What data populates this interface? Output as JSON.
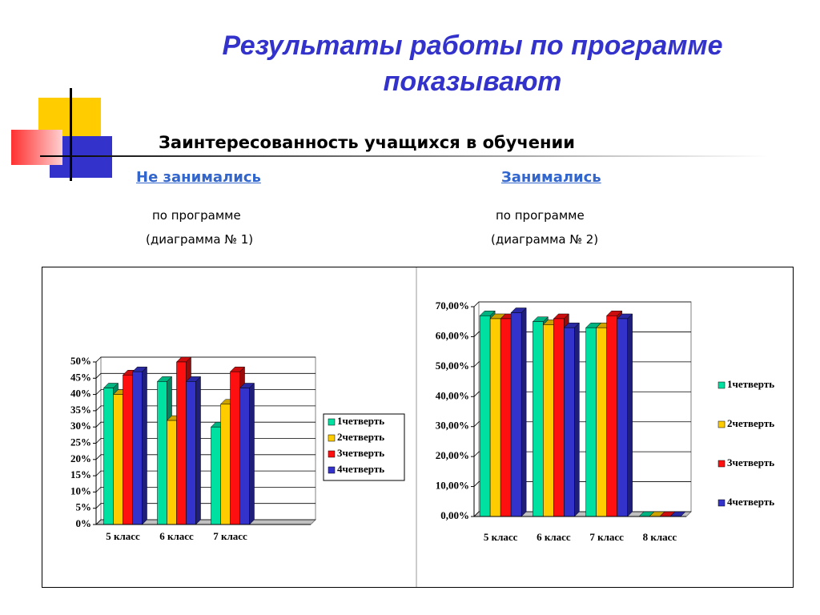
{
  "header": {
    "title_lines": [
      "Результаты работы по программе",
      "показывают"
    ],
    "subtitle": "Заинтересованность учащихся в обучении"
  },
  "columns": [
    {
      "heading": "Не  занимались",
      "line1": "по программе",
      "line2": "(диаграмма № 1)"
    },
    {
      "heading": "Занимались",
      "line1": "по программе",
      "line2": "(диаграмма № 2)"
    }
  ],
  "chart_data": [
    {
      "type": "bar",
      "categories": [
        "5 класс",
        "6 класс",
        "7 класс",
        null
      ],
      "series": [
        {
          "name": "1четверть",
          "color": "#00e0a0",
          "values": [
            42,
            44,
            30,
            null
          ]
        },
        {
          "name": "2четверть",
          "color": "#ffcc00",
          "values": [
            40,
            32,
            37,
            null
          ]
        },
        {
          "name": "3четверть",
          "color": "#ff1010",
          "values": [
            46,
            50,
            47,
            null
          ]
        },
        {
          "name": "4четверть",
          "color": "#3333cc",
          "values": [
            47,
            44,
            42,
            null
          ]
        }
      ],
      "ylim": [
        0,
        50
      ],
      "yticks": [
        {
          "value": 0,
          "label": "0%"
        },
        {
          "value": 5,
          "label": "5%"
        },
        {
          "value": 10,
          "label": "10%"
        },
        {
          "value": 15,
          "label": "15%"
        },
        {
          "value": 20,
          "label": "20%"
        },
        {
          "value": 25,
          "label": "25%"
        },
        {
          "value": 30,
          "label": "30%"
        },
        {
          "value": 35,
          "label": "35%"
        },
        {
          "value": 40,
          "label": "40%"
        },
        {
          "value": 45,
          "label": "45%"
        },
        {
          "value": 50,
          "label": "50%"
        }
      ],
      "grid": true
    },
    {
      "type": "bar",
      "categories": [
        "5 класс",
        "6 класс",
        "7 класс",
        "8 класс"
      ],
      "series": [
        {
          "name": "1четверть",
          "color": "#00e0a0",
          "values": [
            67,
            65,
            63,
            0
          ]
        },
        {
          "name": "2четверть",
          "color": "#ffcc00",
          "values": [
            66,
            64,
            63,
            0
          ]
        },
        {
          "name": "3четверть",
          "color": "#ff1010",
          "values": [
            66,
            66,
            67,
            0
          ]
        },
        {
          "name": "4четверть",
          "color": "#3333cc",
          "values": [
            68,
            63,
            66,
            0
          ]
        }
      ],
      "ylim": [
        0,
        70
      ],
      "yticks": [
        {
          "value": 0,
          "label": "0,00%"
        },
        {
          "value": 10,
          "label": "10,00%"
        },
        {
          "value": 20,
          "label": "20,00%"
        },
        {
          "value": 30,
          "label": "30,00%"
        },
        {
          "value": 40,
          "label": "40,00%"
        },
        {
          "value": 50,
          "label": "50,00%"
        },
        {
          "value": 60,
          "label": "60,00%"
        },
        {
          "value": 70,
          "label": "70,00%"
        }
      ],
      "grid": true
    }
  ]
}
